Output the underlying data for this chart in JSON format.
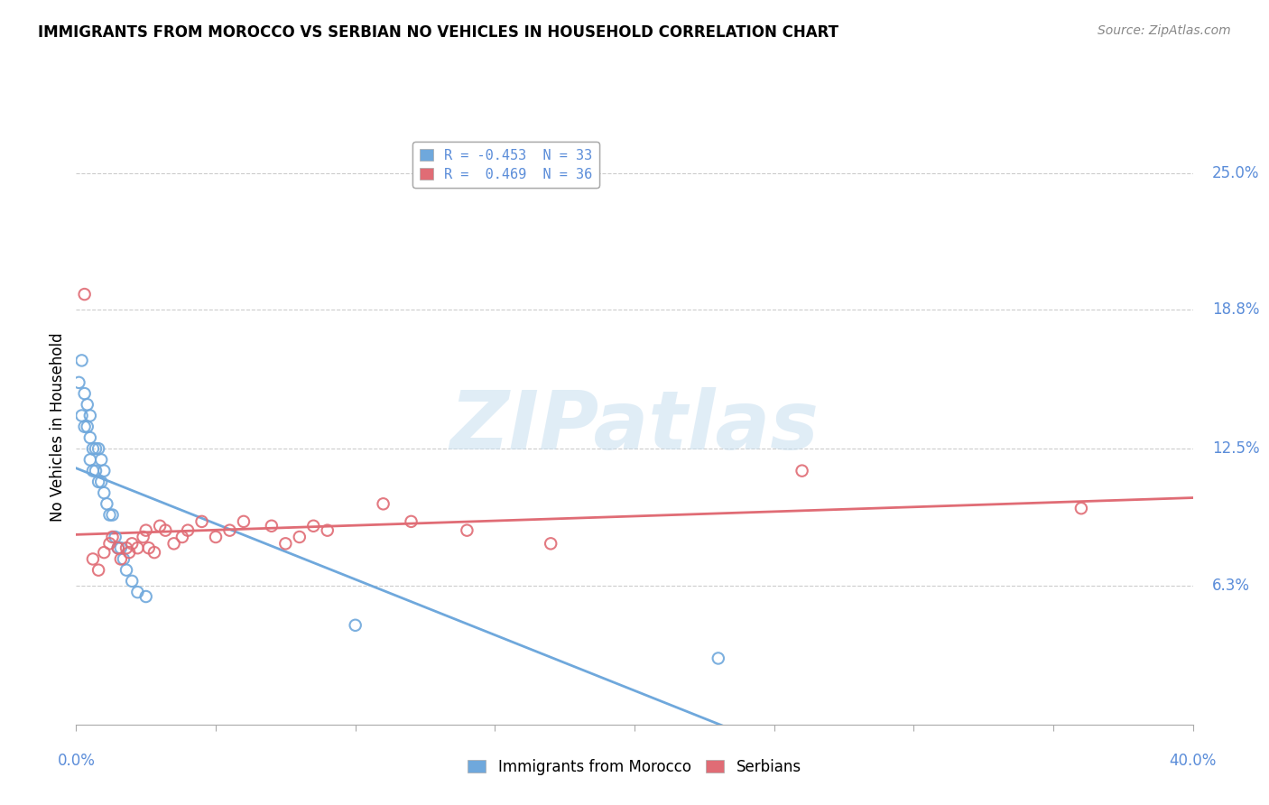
{
  "title": "IMMIGRANTS FROM MOROCCO VS SERBIAN NO VEHICLES IN HOUSEHOLD CORRELATION CHART",
  "source": "Source: ZipAtlas.com",
  "ylabel": "No Vehicles in Household",
  "right_yticks": [
    "6.3%",
    "12.5%",
    "18.8%",
    "25.0%"
  ],
  "right_ytick_vals": [
    0.063,
    0.125,
    0.188,
    0.25
  ],
  "xlim": [
    0.0,
    0.4
  ],
  "ylim": [
    0.0,
    0.27
  ],
  "legend_label1": "Immigrants from Morocco",
  "legend_label2": "Serbians",
  "legend_r1": "R = -0.453  N = 33",
  "legend_r2": "R =  0.469  N = 36",
  "blue_color": "#6fa8dc",
  "pink_color": "#e06c75",
  "watermark": "ZIPatlas",
  "blue_x": [
    0.001,
    0.002,
    0.002,
    0.003,
    0.003,
    0.004,
    0.004,
    0.005,
    0.005,
    0.005,
    0.006,
    0.006,
    0.007,
    0.007,
    0.008,
    0.008,
    0.009,
    0.009,
    0.01,
    0.01,
    0.011,
    0.012,
    0.013,
    0.014,
    0.015,
    0.016,
    0.017,
    0.018,
    0.02,
    0.022,
    0.025,
    0.1,
    0.23
  ],
  "blue_y": [
    0.155,
    0.165,
    0.14,
    0.15,
    0.135,
    0.135,
    0.145,
    0.13,
    0.14,
    0.12,
    0.125,
    0.115,
    0.115,
    0.125,
    0.11,
    0.125,
    0.11,
    0.12,
    0.105,
    0.115,
    0.1,
    0.095,
    0.095,
    0.085,
    0.08,
    0.08,
    0.075,
    0.07,
    0.065,
    0.06,
    0.058,
    0.045,
    0.03
  ],
  "pink_x": [
    0.003,
    0.006,
    0.008,
    0.01,
    0.012,
    0.013,
    0.015,
    0.016,
    0.018,
    0.019,
    0.02,
    0.022,
    0.024,
    0.025,
    0.026,
    0.028,
    0.03,
    0.032,
    0.035,
    0.038,
    0.04,
    0.045,
    0.05,
    0.055,
    0.06,
    0.07,
    0.075,
    0.08,
    0.085,
    0.09,
    0.11,
    0.12,
    0.14,
    0.17,
    0.26,
    0.36
  ],
  "pink_y": [
    0.195,
    0.075,
    0.07,
    0.078,
    0.082,
    0.085,
    0.08,
    0.075,
    0.08,
    0.078,
    0.082,
    0.08,
    0.085,
    0.088,
    0.08,
    0.078,
    0.09,
    0.088,
    0.082,
    0.085,
    0.088,
    0.092,
    0.085,
    0.088,
    0.092,
    0.09,
    0.082,
    0.085,
    0.09,
    0.088,
    0.1,
    0.092,
    0.088,
    0.082,
    0.115,
    0.098
  ]
}
